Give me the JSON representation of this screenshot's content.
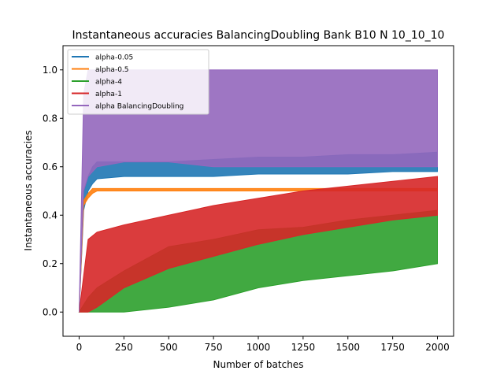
{
  "chart_data": {
    "type": "line",
    "title": "Instantaneous accuracies BalancingDoubling Bank B10 N 10_10_10",
    "xlabel": "Number of batches",
    "ylabel": "Instantaneous accuracies",
    "xlim": [
      -90,
      2090
    ],
    "ylim": [
      -0.1,
      1.1
    ],
    "xticks": [
      0,
      250,
      500,
      750,
      1000,
      1250,
      1500,
      1750,
      2000
    ],
    "yticks": [
      0.0,
      0.2,
      0.4,
      0.6,
      0.8,
      1.0
    ],
    "xtick_labels": [
      "0",
      "250",
      "500",
      "750",
      "1000",
      "1250",
      "1500",
      "1750",
      "2000"
    ],
    "ytick_labels": [
      "0.0",
      "0.2",
      "0.4",
      "0.6",
      "0.8",
      "1.0"
    ],
    "grid": false,
    "legend_position": "upper-left",
    "series": [
      {
        "name": "alpha-0.05",
        "color": "#1f77b4",
        "x": [
          0,
          25,
          50,
          75,
          100,
          250,
          500,
          750,
          1000,
          1250,
          1500,
          1750,
          2000
        ],
        "lower": [
          0.0,
          0.42,
          0.5,
          0.53,
          0.55,
          0.56,
          0.56,
          0.56,
          0.57,
          0.57,
          0.57,
          0.58,
          0.58
        ],
        "upper": [
          0.0,
          0.5,
          0.56,
          0.6,
          0.62,
          0.62,
          0.62,
          0.63,
          0.64,
          0.64,
          0.65,
          0.65,
          0.66
        ]
      },
      {
        "name": "alpha-0.5",
        "color": "#ff7f0e",
        "x": [
          0,
          25,
          50,
          75,
          100,
          250,
          500,
          750,
          1000,
          1250,
          1500,
          1750,
          2000
        ],
        "lower": [
          0.0,
          0.44,
          0.47,
          0.49,
          0.5,
          0.5,
          0.5,
          0.5,
          0.5,
          0.5,
          0.5,
          0.5,
          0.5
        ],
        "upper": [
          0.0,
          0.46,
          0.49,
          0.51,
          0.51,
          0.51,
          0.51,
          0.51,
          0.51,
          0.51,
          0.51,
          0.51,
          0.51
        ]
      },
      {
        "name": "alpha-4",
        "color": "#2ca02c",
        "x": [
          0,
          50,
          100,
          250,
          500,
          750,
          1000,
          1250,
          1500,
          1750,
          2000
        ],
        "lower": [
          0.0,
          0.0,
          0.0,
          0.0,
          0.02,
          0.05,
          0.1,
          0.13,
          0.15,
          0.17,
          0.2
        ],
        "upper": [
          0.0,
          0.06,
          0.1,
          0.17,
          0.27,
          0.3,
          0.34,
          0.35,
          0.38,
          0.4,
          0.42
        ]
      },
      {
        "name": "alpha-1",
        "color": "#d62728",
        "x": [
          0,
          50,
          100,
          250,
          500,
          750,
          1000,
          1250,
          1500,
          1750,
          2000
        ],
        "lower": [
          0.0,
          0.0,
          0.02,
          0.1,
          0.18,
          0.23,
          0.28,
          0.32,
          0.35,
          0.38,
          0.4
        ],
        "upper": [
          0.0,
          0.3,
          0.33,
          0.36,
          0.4,
          0.44,
          0.47,
          0.5,
          0.52,
          0.54,
          0.56
        ]
      },
      {
        "name": "alpha BalancingDoubling",
        "color": "#9467bd",
        "x": [
          0,
          25,
          50,
          100,
          250,
          500,
          750,
          1000,
          1250,
          1500,
          1750,
          2000
        ],
        "lower": [
          0.0,
          0.5,
          0.56,
          0.6,
          0.62,
          0.62,
          0.6,
          0.6,
          0.6,
          0.6,
          0.6,
          0.6
        ],
        "upper": [
          0.0,
          0.9,
          1.0,
          1.0,
          1.0,
          1.0,
          1.0,
          1.0,
          1.0,
          1.0,
          1.0,
          1.0
        ]
      }
    ]
  }
}
